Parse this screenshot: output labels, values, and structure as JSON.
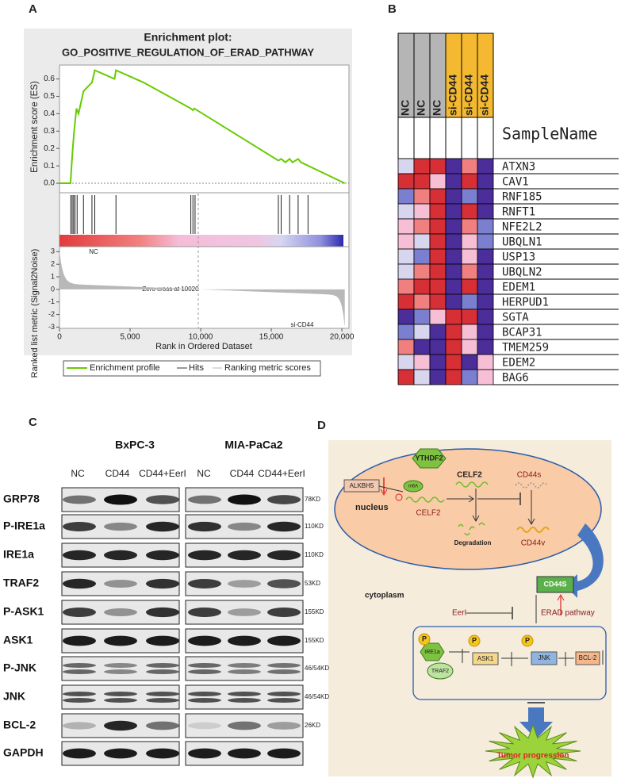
{
  "panel_labels": [
    "A",
    "B",
    "C",
    "D"
  ],
  "chart_data": {
    "type": "line",
    "title": "Enrichment plot:",
    "subtitle": "GO_POSITIVE_REGULATION_OF_ERAD_PATHWAY",
    "y_label": "Enrichment score (ES)",
    "x_label": "Rank in Ordered Dataset",
    "x": [
      0,
      780,
      850,
      950,
      1050,
      1200,
      1350,
      1700,
      2300,
      2500,
      3900,
      4000,
      5950,
      9300,
      9450,
      9550,
      15500,
      15700,
      16000,
      16300,
      16500,
      16900,
      17100,
      20200
    ],
    "series": [
      {
        "name": "Enrichment profile",
        "color": "#66cc00",
        "values": [
          0,
          0,
          0.09,
          0.21,
          0.31,
          0.43,
          0.4,
          0.53,
          0.58,
          0.65,
          0.6,
          0.65,
          0.58,
          0.43,
          0.42,
          0.43,
          0.13,
          0.14,
          0.12,
          0.14,
          0.12,
          0.14,
          0.12,
          0
        ]
      }
    ],
    "xlim": [
      0,
      20500
    ],
    "xticks": [
      0,
      {
        "value": 5000,
        "label": "5,000"
      },
      {
        "value": 10000,
        "label": "10,000"
      },
      {
        "value": 15000,
        "label": "15,000"
      },
      {
        "value": 20000,
        "label": "20,000"
      }
    ],
    "ylim": [
      -0.05,
      0.68
    ],
    "yticks": [
      {
        "value": 0,
        "label": "0.0"
      },
      0.1,
      0.2,
      0.3,
      0.4,
      0.5,
      0.6
    ],
    "hits_name": "Hits",
    "hits": [
      800,
      900,
      1000,
      1100,
      1250,
      1700,
      2300,
      2500,
      4000,
      9300,
      9450,
      9600,
      15500,
      15700,
      16300,
      16900,
      17600
    ],
    "metric": {
      "name": "Ranking metric scores",
      "y_label": "Ranked list metric (Signal2Noise)",
      "ylim": [
        -3.1,
        3.4
      ],
      "yticks": [
        3,
        2,
        1,
        0,
        -1,
        -2,
        -3
      ],
      "annotations": [
        "Zero cross at 10020",
        "NC",
        "si-CD44"
      ]
    }
  },
  "heatmap": {
    "columns": [
      "NC",
      "NC",
      "NC",
      "si-CD44",
      "si-CD44",
      "si-CD44"
    ],
    "column_colors": [
      "#b5b5b5",
      "#b5b5b5",
      "#b5b5b5",
      "#f4b930",
      "#f4b930",
      "#f4b930"
    ],
    "sample_header": "SampleName",
    "genes": [
      "ATXN3",
      "CAV1",
      "RNF185",
      "RNFT1",
      "NFE2L2",
      "UBQLN1",
      "USP13",
      "UBQLN2",
      "EDEM1",
      "HERPUD1",
      "SGTA",
      "BCAP31",
      "TMEM259",
      "EDEM2",
      "BAG6"
    ],
    "cells": [
      [
        "#d8d5ee",
        "#d62f36",
        "#d62f36",
        "#4b2e9a",
        "#f08080",
        "#4b2e9a"
      ],
      [
        "#d62f36",
        "#d62f36",
        "#f6bfd6",
        "#4b2e9a",
        "#d62f36",
        "#4b2e9a"
      ],
      [
        "#7b7fd0",
        "#f08080",
        "#d62f36",
        "#4b2e9a",
        "#7b7fd0",
        "#4b2e9a"
      ],
      [
        "#d8d5ee",
        "#f6bfd6",
        "#d62f36",
        "#4b2e9a",
        "#d62f36",
        "#4b2e9a"
      ],
      [
        "#f6bfd6",
        "#f08080",
        "#d62f36",
        "#4b2e9a",
        "#f08080",
        "#7b7fd0"
      ],
      [
        "#f6bfd6",
        "#d8d5ee",
        "#d62f36",
        "#4b2e9a",
        "#f6bfd6",
        "#7b7fd0"
      ],
      [
        "#d8d5ee",
        "#7b7fd0",
        "#d62f36",
        "#4b2e9a",
        "#f6bfd6",
        "#4b2e9a"
      ],
      [
        "#d8d5ee",
        "#f08080",
        "#d62f36",
        "#4b2e9a",
        "#f08080",
        "#4b2e9a"
      ],
      [
        "#f08080",
        "#d62f36",
        "#d62f36",
        "#4b2e9a",
        "#d62f36",
        "#4b2e9a"
      ],
      [
        "#d62f36",
        "#f08080",
        "#d62f36",
        "#4b2e9a",
        "#7b7fd0",
        "#4b2e9a"
      ],
      [
        "#4b2e9a",
        "#7b7fd0",
        "#f6bfd6",
        "#d62f36",
        "#d62f36",
        "#4b2e9a"
      ],
      [
        "#7b7fd0",
        "#d8d5ee",
        "#4b2e9a",
        "#d62f36",
        "#f6bfd6",
        "#4b2e9a"
      ],
      [
        "#f08080",
        "#4b2e9a",
        "#4b2e9a",
        "#d62f36",
        "#f6bfd6",
        "#4b2e9a"
      ],
      [
        "#d8d5ee",
        "#f6bfd6",
        "#4b2e9a",
        "#d62f36",
        "#4b2e9a",
        "#f6bfd6"
      ],
      [
        "#d62f36",
        "#d8d5ee",
        "#4b2e9a",
        "#d62f36",
        "#7b7fd0",
        "#f6bfd6"
      ]
    ]
  },
  "blot": {
    "cell_lines": [
      "BxPC-3",
      "MIA-PaCa2"
    ],
    "lanes": [
      "NC",
      "CD44",
      "CD44+EerI",
      "NC",
      "CD44",
      "CD44+EerI"
    ],
    "rows": [
      {
        "protein": "GRP78",
        "mw": "78KD"
      },
      {
        "protein": "P-IRE1a",
        "mw": "110KD"
      },
      {
        "protein": "IRE1a",
        "mw": "110KD"
      },
      {
        "protein": "TRAF2",
        "mw": "53KD"
      },
      {
        "protein": "P-ASK1",
        "mw": "155KD"
      },
      {
        "protein": "ASK1",
        "mw": "155KD"
      },
      {
        "protein": "P-JNK",
        "mw": "46/54KD"
      },
      {
        "protein": "JNK",
        "mw": "46/54KD"
      },
      {
        "protein": "BCL-2",
        "mw": "26KD"
      },
      {
        "protein": "GAPDH"
      }
    ]
  },
  "diagram": {
    "labels": [
      "ALKBH5",
      "YTHDF2",
      "m6A",
      "CELF2",
      "CD44s",
      "nucleus",
      "CELF2",
      "Degradation",
      "CD44v",
      "CD44S",
      "cytoplasm",
      "EerI",
      "ERAD  pathway",
      "P",
      "P",
      "P",
      "IRE1a",
      "TRAF2",
      "ASK1",
      "JNK",
      "BCL-2",
      "Tumor progression"
    ]
  }
}
